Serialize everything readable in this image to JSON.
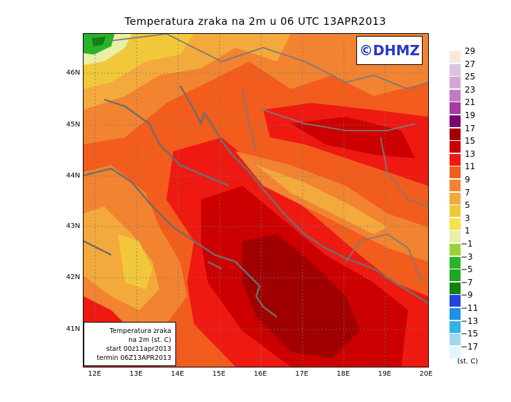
{
  "title": "Temperatura zraka na 2m u 06 UTC 13APR2013",
  "logo": "©DHMZ",
  "info": {
    "line1": "Temperatura zraka",
    "line2": "na 2m (st. C)",
    "line3": "start 00z11apr2013",
    "line4": "termin 06Z13APR2013"
  },
  "lat_labels": [
    "46N",
    "45N",
    "44N",
    "43N",
    "42N",
    "41N"
  ],
  "lon_labels": [
    "12E",
    "13E",
    "14E",
    "15E",
    "16E",
    "17E",
    "18E",
    "19E",
    "20E"
  ],
  "legend": {
    "unit": "(st. C)",
    "levels": [
      "29",
      "27",
      "25",
      "23",
      "21",
      "19",
      "17",
      "15",
      "13",
      "11",
      "9",
      "7",
      "5",
      "3",
      "1",
      "−1",
      "−3",
      "−5",
      "−7",
      "−9",
      "−11",
      "−13",
      "−15",
      "−17"
    ],
    "colors": [
      "#fbe8d8",
      "#dcc2dc",
      "#d6a6d6",
      "#c37bc3",
      "#a43ca4",
      "#7e0073",
      "#a10000",
      "#cc0000",
      "#ee1a12",
      "#f25c1d",
      "#f18331",
      "#f4a93c",
      "#f1c83a",
      "#f4e34f",
      "#e7f0a4",
      "#9ad13a",
      "#2ab32a",
      "#1fa51f",
      "#117f11",
      "#2342e0",
      "#1b92e3",
      "#33b2e6",
      "#9fd9ea",
      "#dff6fb"
    ]
  }
}
